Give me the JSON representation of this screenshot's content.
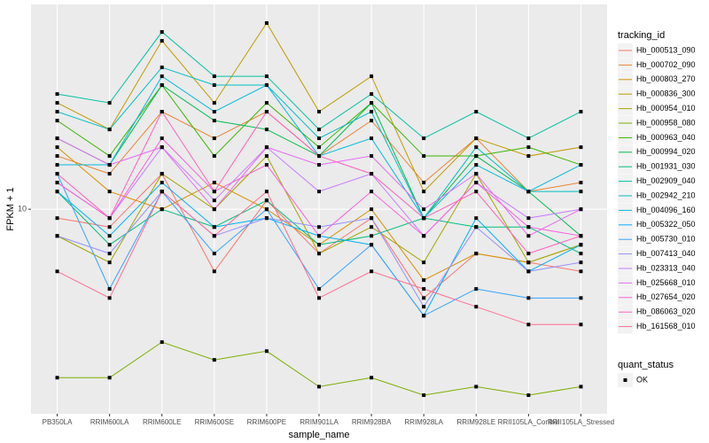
{
  "chart_data": {
    "type": "line",
    "x_label": "sample_name",
    "y_label": "FPKM + 1",
    "log_y": true,
    "ylim": [
      2.65,
      37.8
    ],
    "yticks": [
      10
    ],
    "grid": true,
    "panel_color": "#EBEBEB",
    "legend_title": "tracking_id",
    "legend_position": "right",
    "shape_legend": {
      "title": "quant_status",
      "levels": [
        "OK"
      ]
    },
    "point_color": "#000000",
    "categories": [
      "PB350LA",
      "RRIM600LA",
      "RRIM600LE",
      "RRIM600SE",
      "RRIM600PE",
      "RRIM901LA",
      "RRIM928BA",
      "RRIM928LA",
      "RRIM928LE",
      "RRII105LA_Control",
      "RRII105LA_Stressed"
    ],
    "series": [
      {
        "name": "Hb_000513_090",
        "color": "#F8766D",
        "values": [
          9.44,
          8.91,
          12.59,
          6.68,
          10.59,
          7.5,
          9.44,
          5.62,
          7.5,
          7.08,
          6.68
        ]
      },
      {
        "name": "Hb_000702_090",
        "color": "#EA8331",
        "values": [
          14.13,
          12.59,
          18.84,
          15.85,
          18.84,
          14.13,
          17.78,
          11.89,
          15.85,
          11.22,
          11.89
        ]
      },
      {
        "name": "Hb_000803_270",
        "color": "#D89000",
        "values": [
          14.96,
          11.22,
          10,
          11.89,
          10,
          7.94,
          10,
          6.31,
          7.5,
          7.08,
          7.94
        ]
      },
      {
        "name": "Hb_000836_300",
        "color": "#C09B00",
        "values": [
          19.95,
          16.79,
          29.85,
          19.95,
          33.5,
          18.84,
          23.71,
          11.22,
          15.85,
          14.13,
          14.96
        ]
      },
      {
        "name": "Hb_000954_010",
        "color": "#A3A500",
        "values": [
          8.41,
          7.08,
          12.59,
          10,
          14.13,
          7.5,
          8.91,
          7.08,
          12.59,
          7.08,
          7.94
        ]
      },
      {
        "name": "Hb_000958_080",
        "color": "#7CAE00",
        "values": [
          3.35,
          3.35,
          4.22,
          3.76,
          3.98,
          3.16,
          3.35,
          2.99,
          3.16,
          2.99,
          3.16
        ]
      },
      {
        "name": "Hb_000963_040",
        "color": "#39B600",
        "values": [
          17.78,
          14.13,
          22.39,
          14.13,
          19.95,
          14.96,
          19.95,
          14.13,
          14.13,
          14.96,
          13.34
        ]
      },
      {
        "name": "Hb_000994_020",
        "color": "#00BB4E",
        "values": [
          15.85,
          13.34,
          22.39,
          17.78,
          16.79,
          14.13,
          19.95,
          9.44,
          14.13,
          11.22,
          8.41
        ]
      },
      {
        "name": "Hb_001931_030",
        "color": "#00BF7D",
        "values": [
          11.22,
          7.94,
          10,
          8.91,
          10.59,
          7.94,
          8.41,
          9.44,
          8.91,
          8.91,
          7.5
        ]
      },
      {
        "name": "Hb_002909_040",
        "color": "#00C1A3",
        "values": [
          21.13,
          19.95,
          31.62,
          23.71,
          23.71,
          16.79,
          21.13,
          15.85,
          18.84,
          15.85,
          18.84
        ]
      },
      {
        "name": "Hb_002942_210",
        "color": "#00BFC4",
        "values": [
          18.84,
          16.79,
          25.12,
          22.39,
          22.39,
          15.85,
          18.84,
          9.44,
          14.96,
          11.22,
          11.22
        ]
      },
      {
        "name": "Hb_004096_160",
        "color": "#00BAE0",
        "values": [
          13.34,
          13.34,
          23.71,
          18.84,
          22.39,
          14.13,
          15.85,
          9.44,
          13.34,
          11.22,
          13.34
        ]
      },
      {
        "name": "Hb_005322_050",
        "color": "#00B0F6",
        "values": [
          11.22,
          8.41,
          11.89,
          8.91,
          9.44,
          8.41,
          7.94,
          5.01,
          9.44,
          6.68,
          7.94
        ]
      },
      {
        "name": "Hb_005730_010",
        "color": "#35A2FF",
        "values": [
          12.59,
          5.96,
          11.22,
          7.5,
          10,
          5.96,
          7.94,
          5.01,
          5.96,
          5.62,
          5.62
        ]
      },
      {
        "name": "Hb_007413_040",
        "color": "#9590FF",
        "values": [
          8.41,
          7.5,
          11.22,
          8.41,
          9.44,
          8.91,
          9.44,
          5.31,
          8.91,
          6.68,
          7.08
        ]
      },
      {
        "name": "Hb_023313_040",
        "color": "#C77CFF",
        "values": [
          11.89,
          9.44,
          14.96,
          10.59,
          14.96,
          11.22,
          12.59,
          8.41,
          11.89,
          9.44,
          10
        ]
      },
      {
        "name": "Hb_025668_010",
        "color": "#E76BF3",
        "values": [
          15.85,
          13.34,
          14.96,
          10,
          14.96,
          13.34,
          14.13,
          10,
          12.59,
          8.41,
          10
        ]
      },
      {
        "name": "Hb_027654_020",
        "color": "#FA62DB",
        "values": [
          11.89,
          9.44,
          15.85,
          11.22,
          13.34,
          8.41,
          11.22,
          8.41,
          11.89,
          8.91,
          8.41
        ]
      },
      {
        "name": "Hb_086063_020",
        "color": "#FF62BC",
        "values": [
          12.59,
          9.44,
          18.84,
          11.22,
          18.84,
          14.13,
          12.59,
          9.44,
          11.22,
          7.5,
          8.41
        ]
      },
      {
        "name": "Hb_161568_010",
        "color": "#FF6C91",
        "values": [
          6.68,
          5.62,
          11.22,
          8.41,
          11.22,
          5.62,
          6.68,
          5.96,
          5.31,
          4.73,
          4.73
        ]
      }
    ]
  }
}
